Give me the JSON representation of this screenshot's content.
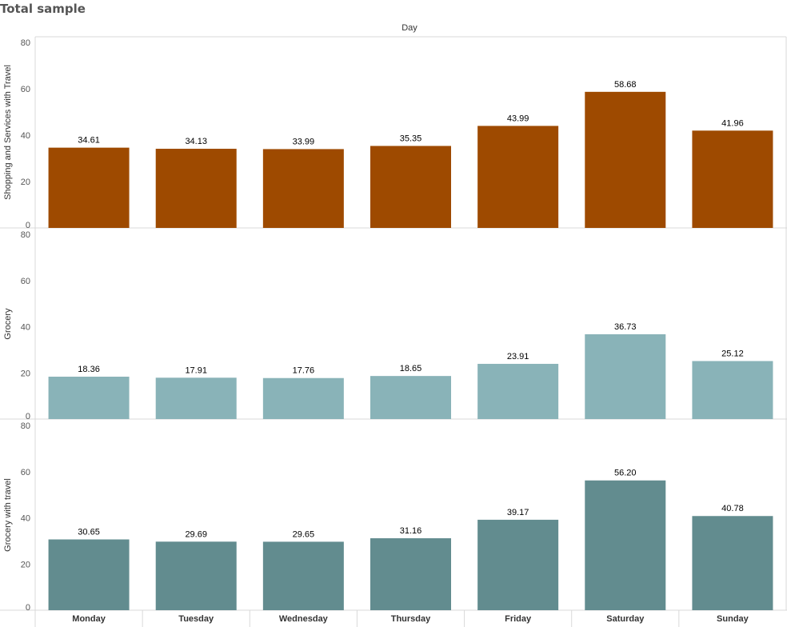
{
  "title": "Total sample",
  "column_header": "Day",
  "colors": {
    "panel_0": "#9E4A00",
    "panel_1": "#89B3B8",
    "panel_2": "#628C8F",
    "grid": "#d9d9d9"
  },
  "chart_data": {
    "type": "bar",
    "categories": [
      "Monday",
      "Tuesday",
      "Wednesday",
      "Thursday",
      "Friday",
      "Saturday",
      "Sunday"
    ],
    "ylim": [
      0,
      80
    ],
    "yticks": [
      0,
      20,
      40,
      60,
      80
    ],
    "grid": false,
    "series": [
      {
        "name": "Shopping and Services with Travel",
        "values": [
          34.61,
          34.13,
          33.99,
          35.35,
          43.99,
          58.68,
          41.96
        ],
        "labels": [
          "34.61",
          "34.13",
          "33.99",
          "35.35",
          "43.99",
          "58.68",
          "41.96"
        ]
      },
      {
        "name": "Grocery",
        "values": [
          18.36,
          17.91,
          17.76,
          18.65,
          23.91,
          36.73,
          25.12
        ],
        "labels": [
          "18.36",
          "17.91",
          "17.76",
          "18.65",
          "23.91",
          "36.73",
          "25.12"
        ]
      },
      {
        "name": "Grocery with travel",
        "values": [
          30.65,
          29.69,
          29.65,
          31.16,
          39.17,
          56.2,
          40.78
        ],
        "labels": [
          "30.65",
          "29.69",
          "29.65",
          "31.16",
          "39.17",
          "56.20",
          "40.78"
        ]
      }
    ]
  }
}
